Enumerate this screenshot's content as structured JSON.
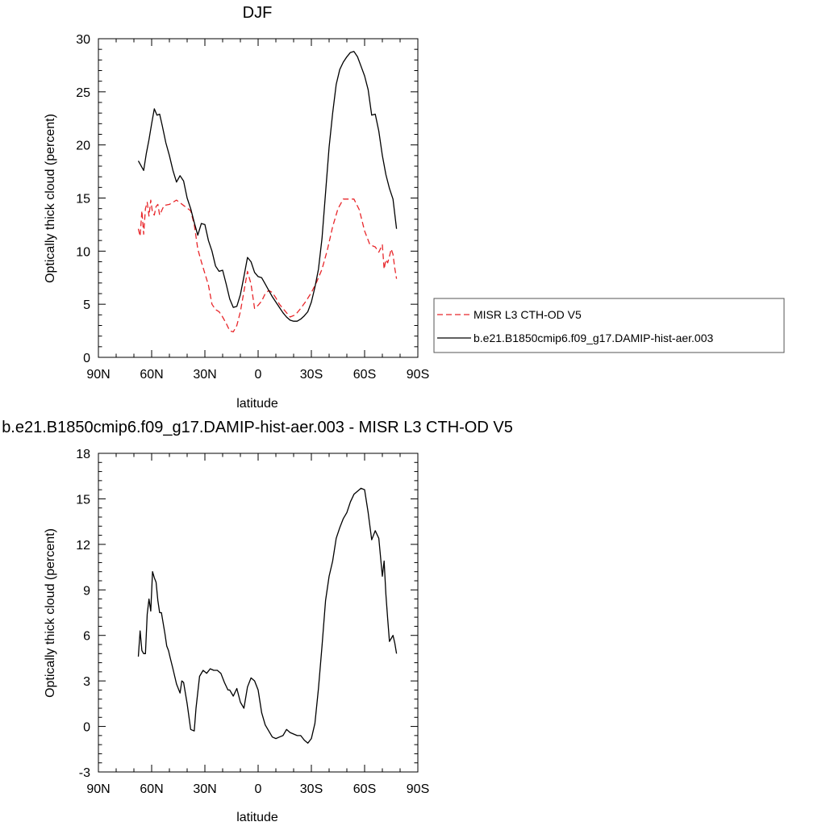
{
  "chart_data": [
    {
      "type": "line",
      "title": "DJF",
      "xlabel": "latitude",
      "ylabel": "Optically thick cloud (percent)",
      "xlim": [
        -90,
        90
      ],
      "ylim": [
        0,
        30
      ],
      "x_ticks": [
        {
          "v": -90,
          "label": "90N"
        },
        {
          "v": -60,
          "label": "60N"
        },
        {
          "v": -30,
          "label": "30N"
        },
        {
          "v": 0,
          "label": "0"
        },
        {
          "v": 30,
          "label": "30S"
        },
        {
          "v": 60,
          "label": "60S"
        },
        {
          "v": 90,
          "label": "90S"
        }
      ],
      "y_ticks": [
        0,
        5,
        10,
        15,
        20,
        25,
        30
      ],
      "legend": {
        "position": "right"
      },
      "series": [
        {
          "name": "MISR L3 CTH-OD V5",
          "color": "#e8262a",
          "dash": "dashed",
          "x": [
            -67.5,
            -66.5,
            -65.5,
            -64.5,
            -63.5,
            -62.5,
            -61.5,
            -60.5,
            -59.5,
            -58.5,
            -57.5,
            -56.5,
            -55.5,
            -53,
            -50,
            -46,
            -42,
            -38,
            -36,
            -34,
            -32,
            -30,
            -28,
            -26,
            -24,
            -22,
            -20,
            -18,
            -16,
            -14,
            -12,
            -10,
            -8,
            -6,
            -4,
            -2,
            0,
            2,
            4,
            6,
            8,
            10,
            12,
            15,
            18,
            21,
            24,
            27,
            30,
            33,
            36,
            39,
            42,
            45,
            48,
            51,
            54,
            57,
            60,
            63,
            66,
            68,
            70,
            71,
            72,
            73,
            74,
            75,
            76,
            77,
            78
          ],
          "y": [
            12.1,
            11.4,
            13.8,
            11.6,
            14.0,
            14.6,
            13.3,
            14.8,
            13.6,
            13.4,
            14.2,
            14.4,
            13.4,
            14.3,
            14.4,
            14.8,
            14.3,
            13.8,
            12.5,
            10.2,
            9.0,
            7.9,
            6.8,
            5.0,
            4.5,
            4.3,
            3.8,
            3.2,
            2.5,
            2.4,
            3.0,
            4.3,
            6.2,
            8.1,
            6.9,
            4.6,
            4.9,
            5.3,
            6.0,
            6.3,
            6.1,
            5.6,
            5.0,
            4.4,
            3.8,
            4.0,
            4.6,
            5.3,
            6.1,
            7.1,
            8.3,
            10.1,
            12.3,
            14.0,
            14.9,
            14.9,
            14.9,
            13.9,
            11.9,
            10.6,
            10.4,
            9.9,
            10.6,
            8.3,
            9.2,
            8.9,
            9.5,
            10.2,
            9.7,
            8.4,
            7.4
          ]
        },
        {
          "name": "b.e21.B1850cmip6.f09_g17.DAMIP-hist-aer.003",
          "color": "#000000",
          "dash": "solid",
          "x": [
            -67.5,
            -64.5,
            -63,
            -61.5,
            -60,
            -58.5,
            -57,
            -55.5,
            -54,
            -52,
            -50,
            -48,
            -46,
            -44,
            -42,
            -40,
            -38,
            -36,
            -34,
            -32,
            -30,
            -28,
            -26,
            -24,
            -22,
            -20,
            -18,
            -16,
            -14,
            -12,
            -10,
            -8,
            -6,
            -4,
            -2,
            0,
            2,
            4,
            6,
            8,
            10,
            12,
            14,
            16,
            18,
            20,
            22,
            24,
            26,
            28,
            30,
            32,
            34,
            36,
            38,
            40,
            42,
            44,
            46,
            48,
            50,
            52,
            54,
            56,
            58,
            60,
            62,
            64,
            66,
            68,
            70,
            72,
            74,
            76,
            78
          ],
          "y": [
            18.5,
            17.6,
            19.2,
            20.5,
            22.0,
            23.4,
            22.8,
            22.9,
            21.8,
            20.2,
            19.0,
            17.6,
            16.5,
            17.1,
            16.6,
            15.0,
            14.0,
            12.7,
            11.5,
            12.6,
            12.5,
            11.0,
            10.0,
            8.6,
            8.1,
            8.2,
            6.9,
            5.5,
            4.7,
            4.8,
            5.9,
            7.6,
            9.4,
            9.0,
            8.0,
            7.6,
            7.5,
            6.9,
            6.3,
            5.7,
            5.2,
            4.7,
            4.2,
            3.8,
            3.5,
            3.4,
            3.4,
            3.6,
            3.9,
            4.3,
            5.2,
            6.6,
            8.3,
            11.2,
            15.5,
            19.8,
            23.0,
            25.7,
            27.1,
            27.8,
            28.3,
            28.7,
            28.8,
            28.3,
            27.4,
            26.5,
            25.2,
            22.8,
            22.9,
            21.3,
            19.0,
            17.2,
            15.9,
            14.9,
            12.1
          ]
        }
      ]
    },
    {
      "type": "line",
      "title": "b.e21.B1850cmip6.f09_g17.DAMIP-hist-aer.003 - MISR L3 CTH-OD V5",
      "xlabel": "latitude",
      "ylabel": "Optically thick cloud (percent)",
      "xlim": [
        -90,
        90
      ],
      "ylim": [
        -3,
        18
      ],
      "x_ticks": [
        {
          "v": -90,
          "label": "90N"
        },
        {
          "v": -60,
          "label": "60N"
        },
        {
          "v": -30,
          "label": "30N"
        },
        {
          "v": 0,
          "label": "0"
        },
        {
          "v": 30,
          "label": "30S"
        },
        {
          "v": 60,
          "label": "60S"
        },
        {
          "v": 90,
          "label": "90S"
        }
      ],
      "y_ticks": [
        -3,
        0,
        3,
        6,
        9,
        12,
        15,
        18
      ],
      "series": [
        {
          "color": "#000000",
          "dash": "solid",
          "x": [
            -67.5,
            -66.5,
            -65.5,
            -64.5,
            -63.5,
            -62.5,
            -61.5,
            -60.5,
            -59.5,
            -58.5,
            -57.5,
            -56.5,
            -55.5,
            -54.5,
            -53.5,
            -52.5,
            -51.5,
            -50.5,
            -49.5,
            -48,
            -46,
            -44,
            -43,
            -42,
            -40,
            -38,
            -36,
            -35,
            -33,
            -31,
            -29,
            -27,
            -25,
            -23,
            -21,
            -19,
            -17,
            -16,
            -14,
            -12,
            -10,
            -8,
            -6,
            -4,
            -2,
            0,
            2,
            4,
            6,
            8,
            10,
            12,
            14,
            16,
            18,
            20,
            22,
            24,
            26,
            28,
            30,
            32,
            34,
            36,
            38,
            40,
            42,
            44,
            46,
            48,
            50,
            52,
            54,
            56,
            58,
            60,
            62,
            64,
            66,
            68,
            70,
            71,
            72,
            73,
            74,
            75,
            76,
            77,
            78
          ],
          "y": [
            4.6,
            6.3,
            5.0,
            4.8,
            4.8,
            7.4,
            8.4,
            7.6,
            10.2,
            9.8,
            9.5,
            8.3,
            7.5,
            7.5,
            6.8,
            6.1,
            5.3,
            5.0,
            4.5,
            3.8,
            2.8,
            2.2,
            3.0,
            2.9,
            1.5,
            -0.2,
            -0.3,
            1.2,
            3.3,
            3.7,
            3.5,
            3.8,
            3.7,
            3.7,
            3.5,
            2.9,
            2.4,
            2.4,
            2.0,
            2.5,
            1.6,
            1.2,
            2.6,
            3.2,
            3.0,
            2.4,
            0.9,
            0.1,
            -0.3,
            -0.7,
            -0.8,
            -0.7,
            -0.6,
            -0.2,
            -0.4,
            -0.5,
            -0.6,
            -0.6,
            -0.9,
            -1.1,
            -0.8,
            0.2,
            2.5,
            5.3,
            8.3,
            9.9,
            10.9,
            12.4,
            13.1,
            13.7,
            14.1,
            14.8,
            15.3,
            15.5,
            15.7,
            15.6,
            14.1,
            12.3,
            12.9,
            12.4,
            9.9,
            10.9,
            8.7,
            7.1,
            5.6,
            5.8,
            6.0,
            5.5,
            4.8
          ]
        }
      ]
    }
  ]
}
